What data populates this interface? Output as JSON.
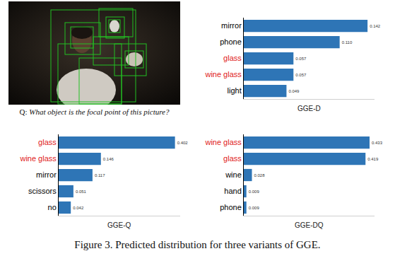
{
  "image": {
    "question_label": "Q:",
    "question": "What object is the focal point of this picture?"
  },
  "caption": "Figure 3. Predicted distribution for three variants of GGE.",
  "chart_data": [
    {
      "type": "bar",
      "title": "GGE-D",
      "orientation": "horizontal",
      "categories": [
        "mirror",
        "phone",
        "glass",
        "wine glass",
        "light"
      ],
      "values": [
        0.142,
        0.11,
        0.057,
        0.057,
        0.049
      ],
      "color": "#2e75b6",
      "category_colors": [
        "#000000",
        "#000000",
        "#e02020",
        "#e02020",
        "#000000"
      ],
      "xlim": [
        0,
        0.15
      ],
      "data_labels": true,
      "tick_labels": "y",
      "grid": false
    },
    {
      "type": "bar",
      "title": "GGE-Q",
      "orientation": "horizontal",
      "categories": [
        "glass",
        "wine glass",
        "mirror",
        "scissors",
        "no"
      ],
      "values": [
        0.402,
        0.146,
        0.117,
        0.051,
        0.042
      ],
      "color": "#2e75b6",
      "category_colors": [
        "#e02020",
        "#e02020",
        "#000000",
        "#000000",
        "#000000"
      ],
      "xlim": [
        0,
        0.42
      ],
      "data_labels": true,
      "tick_labels": "y",
      "grid": false
    },
    {
      "type": "bar",
      "title": "GGE-DQ",
      "orientation": "horizontal",
      "categories": [
        "wine glass",
        "glass",
        "wine",
        "hand",
        "phone"
      ],
      "values": [
        0.433,
        0.419,
        0.028,
        0.009,
        0.009
      ],
      "color": "#2e75b6",
      "category_colors": [
        "#e02020",
        "#e02020",
        "#000000",
        "#000000",
        "#000000"
      ],
      "xlim": [
        0,
        0.45
      ],
      "data_labels": true,
      "tick_labels": "y",
      "grid": false
    }
  ]
}
